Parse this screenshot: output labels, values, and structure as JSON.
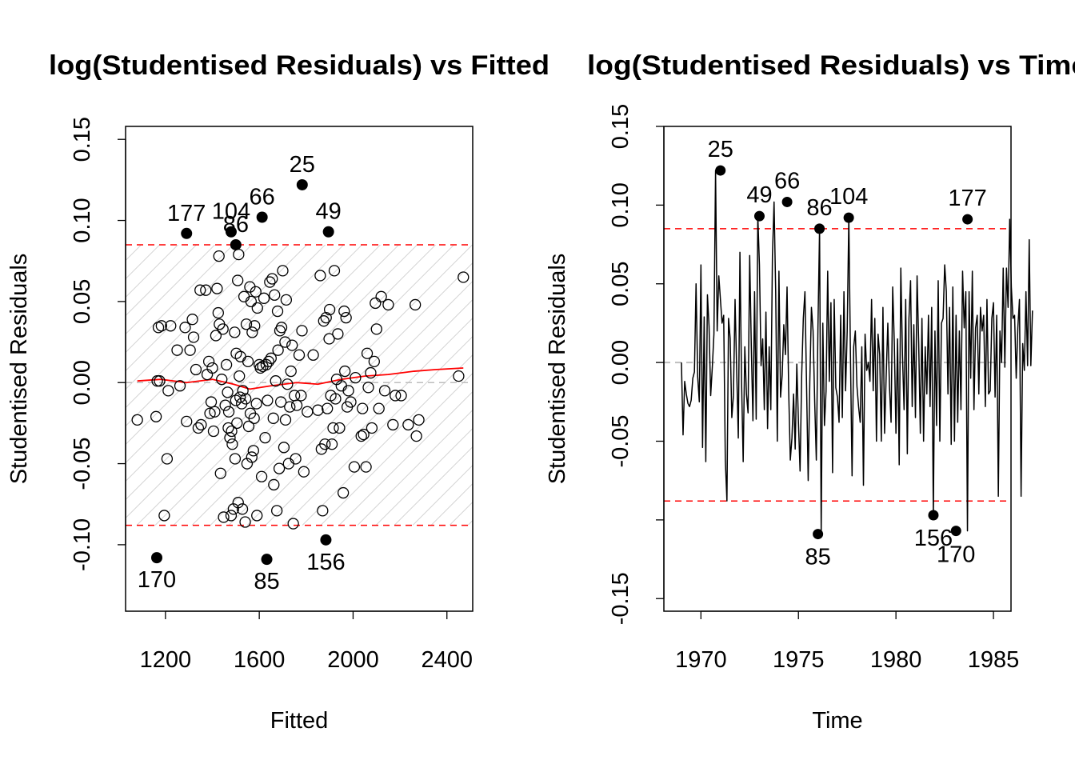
{
  "colors": {
    "threshold": "#ff0000",
    "smoother": "#ff0000",
    "zero_line": "#bebebe",
    "hatch": "#d3d3d3",
    "points": "#000000"
  },
  "chart_data": [
    {
      "type": "scatter",
      "title": "log(Studentised Residuals) vs Fitted",
      "xlabel": "Fitted",
      "ylabel": "Studentised Residuals",
      "xlim": [
        1030,
        2510
      ],
      "ylim": [
        -0.141,
        0.158
      ],
      "xticks": [
        "1200",
        "1600",
        "2000",
        "2400"
      ],
      "yticks": [
        "-0.10",
        "-0.05",
        "0.00",
        "0.05",
        "0.10",
        "0.15"
      ],
      "threshold_upper": 0.085,
      "threshold_lower": -0.088,
      "highlighted": [
        {
          "label": "25",
          "x": 1783,
          "y": 0.122
        },
        {
          "label": "66",
          "x": 1612,
          "y": 0.102
        },
        {
          "label": "49",
          "x": 1895,
          "y": 0.093
        },
        {
          "label": "177",
          "x": 1290,
          "y": 0.092
        },
        {
          "label": "104",
          "x": 1480,
          "y": 0.093
        },
        {
          "label": "86",
          "x": 1500,
          "y": 0.085
        },
        {
          "label": "170",
          "x": 1163,
          "y": -0.108
        },
        {
          "label": "85",
          "x": 1632,
          "y": -0.109
        },
        {
          "label": "156",
          "x": 1884,
          "y": -0.097
        }
      ],
      "points": [
        [
          1080,
          -0.023
        ],
        [
          1160,
          -0.021
        ],
        [
          1165,
          0.001
        ],
        [
          1170,
          0.034
        ],
        [
          1175,
          0.001
        ],
        [
          1183,
          0.035
        ],
        [
          1195,
          -0.082
        ],
        [
          1207,
          -0.047
        ],
        [
          1212,
          -0.005
        ],
        [
          1222,
          0.035
        ],
        [
          1250,
          0.02
        ],
        [
          1262,
          -0.002
        ],
        [
          1284,
          0.034
        ],
        [
          1290,
          -0.024
        ],
        [
          1305,
          0.02
        ],
        [
          1315,
          0.039
        ],
        [
          1320,
          0.028
        ],
        [
          1330,
          0.008
        ],
        [
          1340,
          -0.028
        ],
        [
          1348,
          0.057
        ],
        [
          1352,
          -0.026
        ],
        [
          1372,
          0.057
        ],
        [
          1378,
          0.005
        ],
        [
          1385,
          0.013
        ],
        [
          1390,
          -0.019
        ],
        [
          1395,
          -0.012
        ],
        [
          1400,
          0.009
        ],
        [
          1405,
          -0.03
        ],
        [
          1410,
          -0.018
        ],
        [
          1415,
          0.029
        ],
        [
          1420,
          0.058
        ],
        [
          1425,
          0.043
        ],
        [
          1428,
          0.078
        ],
        [
          1430,
          0.036
        ],
        [
          1435,
          -0.056
        ],
        [
          1440,
          0.002
        ],
        [
          1445,
          0.033
        ],
        [
          1448,
          -0.083
        ],
        [
          1455,
          -0.014
        ],
        [
          1460,
          0.011
        ],
        [
          1465,
          -0.006
        ],
        [
          1468,
          -0.028
        ],
        [
          1470,
          -0.018
        ],
        [
          1475,
          -0.034
        ],
        [
          1480,
          -0.082
        ],
        [
          1482,
          -0.03
        ],
        [
          1485,
          -0.038
        ],
        [
          1490,
          -0.078
        ],
        [
          1495,
          0.031
        ],
        [
          1497,
          -0.047
        ],
        [
          1500,
          -0.011
        ],
        [
          1502,
          0.018
        ],
        [
          1505,
          -0.025
        ],
        [
          1508,
          0.063
        ],
        [
          1510,
          -0.074
        ],
        [
          1512,
          0.079
        ],
        [
          1515,
          0.004
        ],
        [
          1518,
          -0.009
        ],
        [
          1520,
          0.016
        ],
        [
          1525,
          -0.013
        ],
        [
          1528,
          -0.078
        ],
        [
          1530,
          -0.005
        ],
        [
          1535,
          0.053
        ],
        [
          1540,
          -0.086
        ],
        [
          1542,
          -0.01
        ],
        [
          1545,
          0.036
        ],
        [
          1548,
          -0.05
        ],
        [
          1552,
          0.013
        ],
        [
          1555,
          -0.027
        ],
        [
          1560,
          0.059
        ],
        [
          1562,
          -0.019
        ],
        [
          1565,
          0.05
        ],
        [
          1568,
          -0.046
        ],
        [
          1570,
          0.031
        ],
        [
          1575,
          -0.042
        ],
        [
          1578,
          -0.022
        ],
        [
          1580,
          0.035
        ],
        [
          1585,
          0.056
        ],
        [
          1588,
          -0.013
        ],
        [
          1590,
          -0.082
        ],
        [
          1592,
          0.046
        ],
        [
          1600,
          0.011
        ],
        [
          1605,
          0.009
        ],
        [
          1610,
          -0.058
        ],
        [
          1615,
          0.01
        ],
        [
          1620,
          0.052
        ],
        [
          1625,
          -0.034
        ],
        [
          1630,
          0.011
        ],
        [
          1635,
          -0.011
        ],
        [
          1640,
          0.013
        ],
        [
          1645,
          0.062
        ],
        [
          1650,
          0.015
        ],
        [
          1655,
          0.064
        ],
        [
          1660,
          -0.022
        ],
        [
          1662,
          -0.063
        ],
        [
          1665,
          0.054
        ],
        [
          1670,
          0.001
        ],
        [
          1675,
          -0.079
        ],
        [
          1678,
          0.044
        ],
        [
          1680,
          0.02
        ],
        [
          1685,
          -0.053
        ],
        [
          1688,
          0.032
        ],
        [
          1692,
          -0.012
        ],
        [
          1695,
          0.034
        ],
        [
          1700,
          0.069
        ],
        [
          1705,
          -0.04
        ],
        [
          1710,
          0.025
        ],
        [
          1712,
          -0.023
        ],
        [
          1715,
          0.051
        ],
        [
          1720,
          -0.001
        ],
        [
          1725,
          -0.05
        ],
        [
          1730,
          -0.015
        ],
        [
          1735,
          0.007
        ],
        [
          1740,
          0.023
        ],
        [
          1745,
          -0.087
        ],
        [
          1750,
          -0.008
        ],
        [
          1755,
          -0.047
        ],
        [
          1760,
          -0.014
        ],
        [
          1770,
          0.017
        ],
        [
          1778,
          -0.008
        ],
        [
          1782,
          0.032
        ],
        [
          1790,
          -0.055
        ],
        [
          1805,
          -0.018
        ],
        [
          1830,
          0.017
        ],
        [
          1850,
          -0.017
        ],
        [
          1860,
          0.066
        ],
        [
          1865,
          -0.041
        ],
        [
          1870,
          -0.079
        ],
        [
          1875,
          0.038
        ],
        [
          1880,
          -0.038
        ],
        [
          1885,
          0.04
        ],
        [
          1890,
          -0.016
        ],
        [
          1898,
          0.027
        ],
        [
          1900,
          0.045
        ],
        [
          1905,
          -0.008
        ],
        [
          1910,
          -0.038
        ],
        [
          1915,
          -0.028
        ],
        [
          1920,
          0.069
        ],
        [
          1925,
          -0.01
        ],
        [
          1930,
          0.002
        ],
        [
          1935,
          0.03
        ],
        [
          1942,
          -0.028
        ],
        [
          1950,
          -0.002
        ],
        [
          1958,
          -0.068
        ],
        [
          1962,
          0.044
        ],
        [
          1965,
          0.007
        ],
        [
          1970,
          0.04
        ],
        [
          1975,
          -0.015
        ],
        [
          1980,
          -0.005
        ],
        [
          1990,
          -0.012
        ],
        [
          2005,
          -0.052
        ],
        [
          2010,
          0.003
        ],
        [
          2035,
          -0.033
        ],
        [
          2040,
          -0.016
        ],
        [
          2045,
          -0.032
        ],
        [
          2055,
          -0.052
        ],
        [
          2060,
          0.018
        ],
        [
          2065,
          -0.003
        ],
        [
          2075,
          0.006
        ],
        [
          2080,
          -0.028
        ],
        [
          2090,
          0.013
        ],
        [
          2095,
          0.049
        ],
        [
          2100,
          0.033
        ],
        [
          2110,
          -0.016
        ],
        [
          2120,
          0.053
        ],
        [
          2135,
          -0.005
        ],
        [
          2150,
          0.048
        ],
        [
          2170,
          -0.026
        ],
        [
          2180,
          -0.008
        ],
        [
          2205,
          -0.008
        ],
        [
          2235,
          -0.026
        ],
        [
          2265,
          0.048
        ],
        [
          2270,
          -0.033
        ],
        [
          2280,
          -0.023
        ],
        [
          2450,
          0.004
        ],
        [
          2470,
          0.065
        ]
      ],
      "smoother": [
        [
          1080,
          0.001
        ],
        [
          1180,
          0.002
        ],
        [
          1290,
          0.0
        ],
        [
          1400,
          0.002
        ],
        [
          1490,
          -0.001
        ],
        [
          1560,
          -0.004
        ],
        [
          1650,
          -0.002
        ],
        [
          1760,
          0.0
        ],
        [
          1850,
          -0.001
        ],
        [
          1950,
          0.002
        ],
        [
          2050,
          0.004
        ],
        [
          2150,
          0.005
        ],
        [
          2260,
          0.007
        ],
        [
          2350,
          0.008
        ],
        [
          2470,
          0.009
        ]
      ]
    },
    {
      "type": "line",
      "title": "log(Studentised Residuals) vs Time",
      "xlabel": "Time",
      "ylabel": "Studentised Residuals",
      "xlim": [
        1968.1,
        1985.9
      ],
      "ylim": [
        -0.158,
        0.15
      ],
      "xticks": [
        "1970",
        "1975",
        "1980",
        "1985"
      ],
      "yticks": [
        "-0.15",
        "-0.05",
        "0.00",
        "0.05",
        "0.10",
        "0.15"
      ],
      "ytick_values": [
        -0.15,
        -0.05,
        0.0,
        0.05,
        0.1,
        0.15
      ],
      "threshold_upper": 0.085,
      "threshold_lower": -0.088,
      "highlighted": [
        {
          "label": "25",
          "x": 1971.0,
          "y": 0.122
        },
        {
          "label": "49",
          "x": 1973.0,
          "y": 0.093
        },
        {
          "label": "66",
          "x": 1974.42,
          "y": 0.102
        },
        {
          "label": "86",
          "x": 1976.08,
          "y": 0.085
        },
        {
          "label": "104",
          "x": 1977.58,
          "y": 0.092
        },
        {
          "label": "177",
          "x": 1983.67,
          "y": 0.091
        },
        {
          "label": "85",
          "x": 1976.0,
          "y": -0.109
        },
        {
          "label": "156",
          "x": 1981.92,
          "y": -0.097
        },
        {
          "label": "170",
          "x": 1983.08,
          "y": -0.107
        }
      ],
      "start": 1969.0,
      "step": 0.0833333,
      "values": [
        0.0,
        -0.046,
        -0.012,
        -0.02,
        -0.026,
        -0.028,
        -0.024,
        -0.01,
        -0.006,
        0.05,
        -0.009,
        -0.025,
        0.062,
        -0.054,
        0.029,
        -0.063,
        0.043,
        0.023,
        -0.021,
        -0.003,
        0.018,
        0.122,
        0.02,
        0.055,
        0.04,
        0.025,
        0.03,
        -0.062,
        -0.088,
        0.028,
        0.015,
        -0.035,
        -0.021,
        0.04,
        -0.005,
        -0.048,
        0.07,
        -0.012,
        -0.063,
        0.01,
        -0.02,
        -0.032,
        0.068,
        0.01,
        -0.037,
        0.045,
        -0.036,
        0.093,
        0.062,
        -0.002,
        0.015,
        -0.03,
        0.032,
        -0.042,
        0.01,
        -0.03,
        0.068,
        0.102,
        0.045,
        -0.05,
        0.058,
        -0.022,
        -0.008,
        0.024,
        0.005,
        0.048,
        -0.018,
        -0.062,
        -0.048,
        -0.02,
        -0.055,
        -0.001,
        -0.038,
        -0.069,
        -0.008,
        0.028,
        0.045,
        -0.015,
        -0.075,
        -0.012,
        0.035,
        0.02,
        -0.025,
        -0.062,
        0.022,
        0.085,
        -0.109,
        0.025,
        -0.04,
        -0.018,
        0.058,
        -0.012,
        0.038,
        -0.07,
        0.04,
        -0.016,
        -0.022,
        -0.038,
        0.03,
        -0.035,
        0.045,
        -0.018,
        0.02,
        0.092,
        0.005,
        -0.072,
        0.01,
        0.02,
        -0.015,
        -0.028,
        -0.038,
        0.01,
        -0.078,
        0.018,
        -0.005,
        0.0,
        -0.012,
        0.04,
        -0.018,
        0.028,
        -0.05,
        0.018,
        0.005,
        -0.05,
        0.035,
        -0.045,
        -0.008,
        0.025,
        -0.015,
        -0.038,
        0.048,
        0.012,
        -0.045,
        0.015,
        -0.065,
        0.06,
        0.005,
        -0.03,
        0.04,
        -0.058,
        0.028,
        0.052,
        -0.028,
        0.024,
        -0.035,
        0.055,
        0.012,
        -0.045,
        0.028,
        -0.05,
        0.01,
        -0.02,
        0.03,
        -0.028,
        0.035,
        -0.097,
        0.02,
        -0.04,
        0.052,
        -0.05,
        0.025,
        0.028,
        0.062,
        0.045,
        -0.02,
        0.035,
        -0.052,
        0.048,
        -0.05,
        0.03,
        -0.038,
        0.02,
        -0.03,
        0.058,
        0.022,
        0.045,
        -0.107,
        0.045,
        -0.01,
        0.058,
        -0.03,
        0.022,
        0.03,
        -0.02,
        0.035,
        0.02,
        0.03,
        -0.028,
        0.04,
        -0.02,
        -0.018,
        0.028,
        0.038,
        -0.022,
        0.03,
        -0.085,
        0.02,
        0.0,
        0.06,
        -0.003,
        0.06,
        0.035,
        0.091,
        0.048,
        0.028,
        0.03,
        -0.01,
        0.022,
        0.04,
        -0.085,
        0.012,
        -0.005,
        0.045,
        -0.002,
        0.078,
        -0.002,
        0.033
      ]
    }
  ]
}
